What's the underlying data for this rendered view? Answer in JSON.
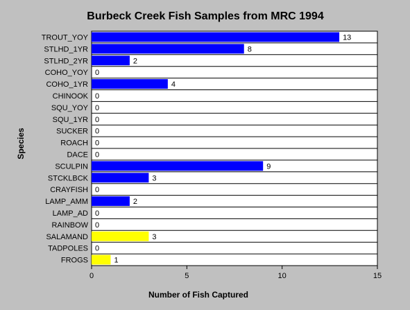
{
  "chart_data": {
    "type": "bar",
    "orientation": "horizontal",
    "title": "Burbeck Creek Fish Samples from MRC 1994",
    "xlabel": "Number of Fish Captured",
    "ylabel": "Species",
    "xlim": [
      0,
      15
    ],
    "xticks": [
      "0",
      "5",
      "10",
      "15"
    ],
    "grid": false,
    "categories": [
      "TROUT_YOY",
      "STLHD_1YR",
      "STLHD_2YR",
      "COHO_YOY",
      "COHO_1YR",
      "CHINOOK",
      "SQU_YOY",
      "SQU_1YR",
      "SUCKER",
      "ROACH",
      "DACE",
      "SCULPIN",
      "STCKLBCK",
      "CRAYFISH",
      "LAMP_AMM",
      "LAMP_AD",
      "RAINBOW",
      "SALAMAND",
      "TADPOLES",
      "FROGS"
    ],
    "values": [
      13,
      8,
      2,
      0,
      4,
      0,
      0,
      0,
      0,
      0,
      0,
      9,
      3,
      0,
      2,
      0,
      0,
      3,
      0,
      1
    ],
    "bar_colors": [
      "#0000ff",
      "#0000ff",
      "#0000ff",
      "#0000ff",
      "#0000ff",
      "#0000ff",
      "#0000ff",
      "#0000ff",
      "#0000ff",
      "#0000ff",
      "#0000ff",
      "#0000ff",
      "#0000ff",
      "#0000ff",
      "#0000ff",
      "#0000ff",
      "#0000ff",
      "#ffff00",
      "#ffff00",
      "#ffff00"
    ]
  },
  "colors": {
    "background": "#c0c0c0",
    "plot_background": "#ffffff",
    "fish_bar": "#0000ff",
    "amphibian_bar": "#ffff00"
  }
}
